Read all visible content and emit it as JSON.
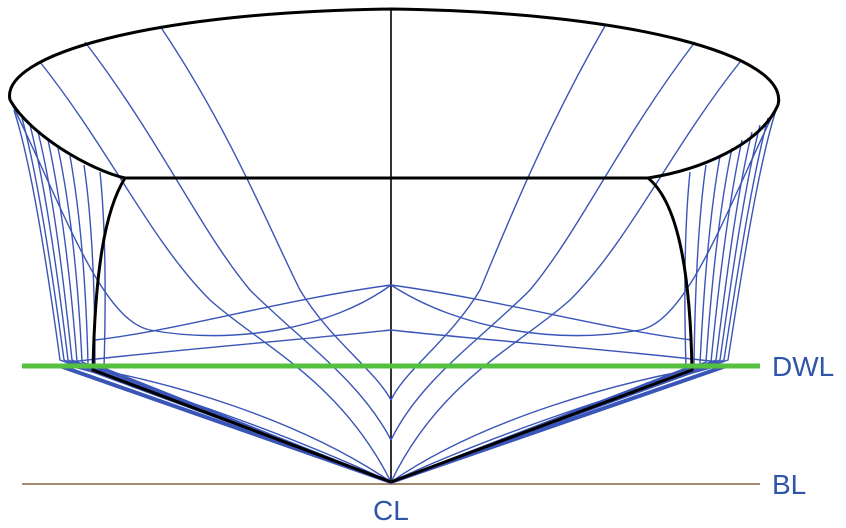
{
  "labels": {
    "dwl": "DWL",
    "bl": "BL",
    "cl": "CL"
  },
  "colors": {
    "station_lines": "#3a55b8",
    "outline": "#000000",
    "waterline": "#55c040",
    "baseline": "#a78a70",
    "label_text": "#2f55a8"
  }
}
